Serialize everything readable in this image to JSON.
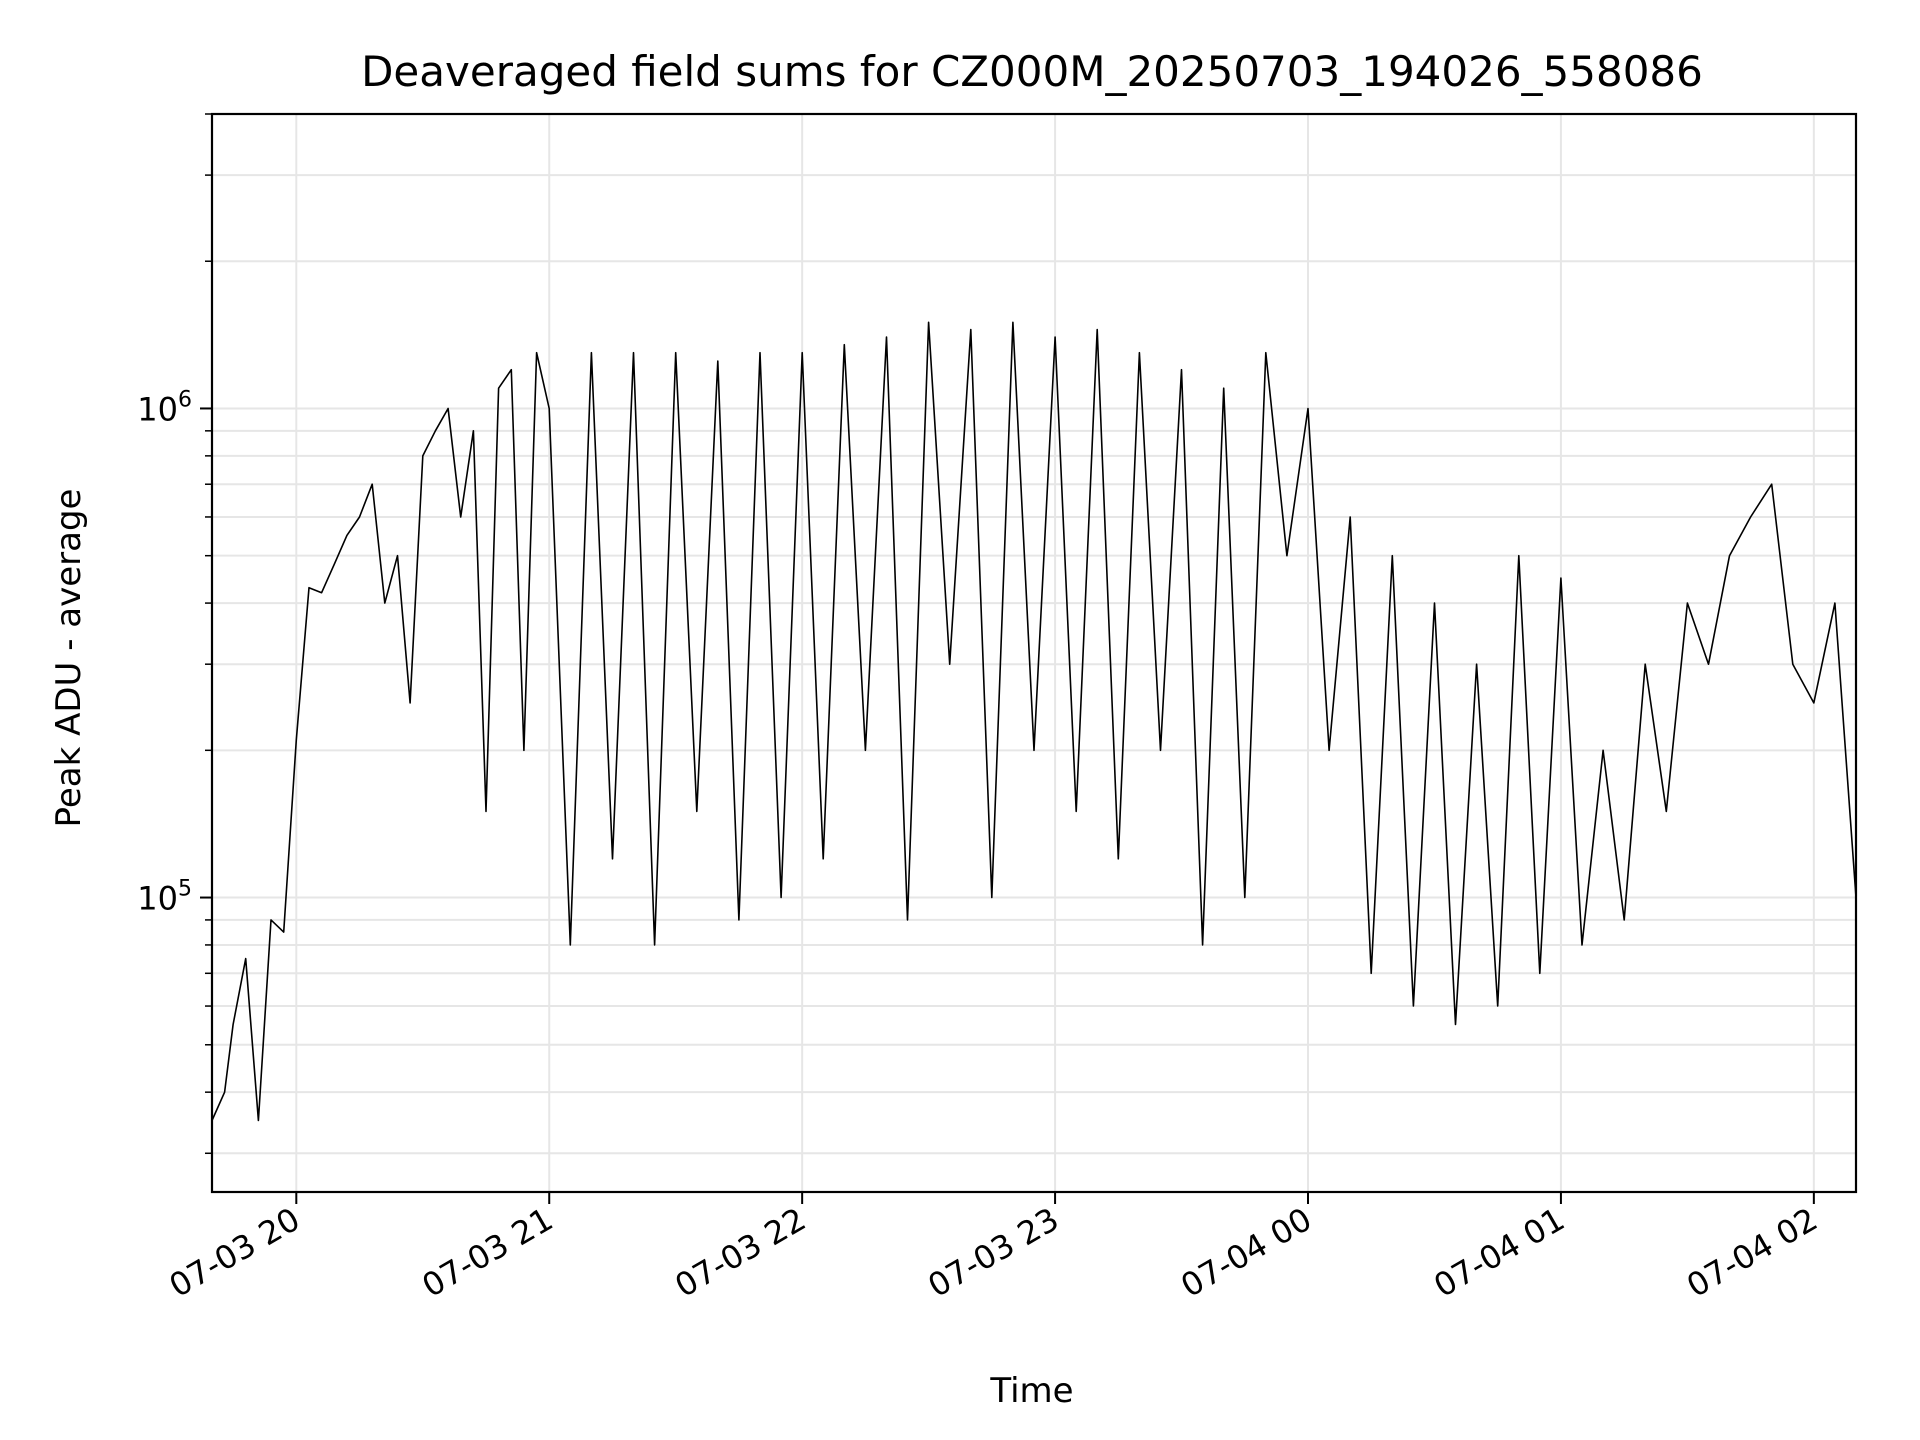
{
  "chart_data": {
    "type": "line",
    "title": "Deaveraged field sums for CZ000M_20250703_194026_558086",
    "xlabel": "Time",
    "ylabel": "Peak ADU - average",
    "x_axis": {
      "kind": "datetime",
      "range": [
        "2025-07-03 19:40",
        "2025-07-04 02:10"
      ],
      "ticks": [
        {
          "label": "07-03 20",
          "value": "2025-07-03 20:00"
        },
        {
          "label": "07-03 21",
          "value": "2025-07-03 21:00"
        },
        {
          "label": "07-03 22",
          "value": "2025-07-03 22:00"
        },
        {
          "label": "07-03 23",
          "value": "2025-07-03 23:00"
        },
        {
          "label": "07-04 00",
          "value": "2025-07-04 00:00"
        },
        {
          "label": "07-04 01",
          "value": "2025-07-04 01:00"
        },
        {
          "label": "07-04 02",
          "value": "2025-07-04 02:00"
        }
      ]
    },
    "y_axis": {
      "scale": "log",
      "range": [
        25000,
        4000000
      ],
      "major_ticks": [
        {
          "value": 100000,
          "base": "10",
          "exp": "5"
        },
        {
          "value": 1000000,
          "base": "10",
          "exp": "6"
        }
      ]
    },
    "grid": true,
    "legend": "none",
    "line_color": "#000000",
    "grid_color": "#e6e6e6",
    "series": [
      {
        "x": [
          "2025-07-03 19:40",
          "2025-07-03 19:43",
          "2025-07-03 19:45",
          "2025-07-03 19:48",
          "2025-07-03 19:51",
          "2025-07-03 19:54",
          "2025-07-03 19:57",
          "2025-07-03 20:00",
          "2025-07-03 20:03",
          "2025-07-03 20:06",
          "2025-07-03 20:09",
          "2025-07-03 20:12",
          "2025-07-03 20:15",
          "2025-07-03 20:18",
          "2025-07-03 20:21",
          "2025-07-03 20:24",
          "2025-07-03 20:27",
          "2025-07-03 20:30",
          "2025-07-03 20:33",
          "2025-07-03 20:36",
          "2025-07-03 20:39",
          "2025-07-03 20:42",
          "2025-07-03 20:45",
          "2025-07-03 20:48",
          "2025-07-03 20:51",
          "2025-07-03 20:54",
          "2025-07-03 20:57",
          "2025-07-03 21:00",
          "2025-07-03 21:05",
          "2025-07-03 21:10",
          "2025-07-03 21:15",
          "2025-07-03 21:20",
          "2025-07-03 21:25",
          "2025-07-03 21:30",
          "2025-07-03 21:35",
          "2025-07-03 21:40",
          "2025-07-03 21:45",
          "2025-07-03 21:50",
          "2025-07-03 21:55",
          "2025-07-03 22:00",
          "2025-07-03 22:05",
          "2025-07-03 22:10",
          "2025-07-03 22:15",
          "2025-07-03 22:20",
          "2025-07-03 22:25",
          "2025-07-03 22:30",
          "2025-07-03 22:35",
          "2025-07-03 22:40",
          "2025-07-03 22:45",
          "2025-07-03 22:50",
          "2025-07-03 22:55",
          "2025-07-03 23:00",
          "2025-07-03 23:05",
          "2025-07-03 23:10",
          "2025-07-03 23:15",
          "2025-07-03 23:20",
          "2025-07-03 23:25",
          "2025-07-03 23:30",
          "2025-07-03 23:35",
          "2025-07-03 23:40",
          "2025-07-03 23:45",
          "2025-07-03 23:50",
          "2025-07-03 23:55",
          "2025-07-04 00:00",
          "2025-07-04 00:05",
          "2025-07-04 00:10",
          "2025-07-04 00:15",
          "2025-07-04 00:20",
          "2025-07-04 00:25",
          "2025-07-04 00:30",
          "2025-07-04 00:35",
          "2025-07-04 00:40",
          "2025-07-04 00:45",
          "2025-07-04 00:50",
          "2025-07-04 00:55",
          "2025-07-04 01:00",
          "2025-07-04 01:05",
          "2025-07-04 01:10",
          "2025-07-04 01:15",
          "2025-07-04 01:20",
          "2025-07-04 01:25",
          "2025-07-04 01:30",
          "2025-07-04 01:35",
          "2025-07-04 01:40",
          "2025-07-04 01:45",
          "2025-07-04 01:50",
          "2025-07-04 01:55",
          "2025-07-04 02:00",
          "2025-07-04 02:05",
          "2025-07-04 02:10"
        ],
        "y": [
          35000,
          40000,
          55000,
          75000,
          35000,
          90000,
          85000,
          210000,
          430000,
          420000,
          480000,
          550000,
          600000,
          700000,
          400000,
          500000,
          250000,
          800000,
          900000,
          1000000,
          600000,
          900000,
          150000,
          1100000,
          1200000,
          200000,
          1300000,
          1000000,
          80000,
          1300000,
          120000,
          1300000,
          80000,
          1300000,
          150000,
          1250000,
          90000,
          1300000,
          100000,
          1300000,
          120000,
          1350000,
          200000,
          1400000,
          90000,
          1500000,
          300000,
          1450000,
          100000,
          1500000,
          200000,
          1400000,
          150000,
          1450000,
          120000,
          1300000,
          200000,
          1200000,
          80000,
          1100000,
          100000,
          1300000,
          500000,
          1000000,
          200000,
          600000,
          70000,
          500000,
          60000,
          400000,
          55000,
          300000,
          60000,
          500000,
          70000,
          450000,
          80000,
          200000,
          90000,
          300000,
          150000,
          400000,
          300000,
          500000,
          600000,
          700000,
          300000,
          250000,
          400000,
          100000
        ]
      }
    ]
  }
}
